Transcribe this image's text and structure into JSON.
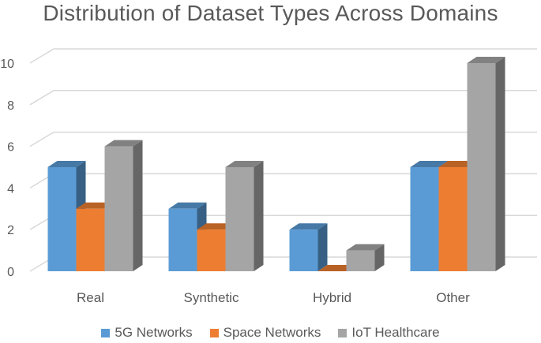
{
  "chart_data": {
    "type": "bar",
    "title": "Distribution of Dataset Types Across Domains",
    "xlabel": "",
    "ylabel": "",
    "categories": [
      "Real",
      "Synthetic",
      "Hybrid",
      "Other"
    ],
    "series": [
      {
        "name": "5G Networks",
        "values": [
          5,
          3,
          2,
          5
        ],
        "color": "#5B9BD5"
      },
      {
        "name": "Space Networks",
        "values": [
          3,
          2,
          0,
          5
        ],
        "color": "#ED7D31"
      },
      {
        "name": "IoT Healthcare",
        "values": [
          6,
          5,
          1,
          10
        ],
        "color": "#A5A5A5"
      }
    ],
    "ylim": [
      0,
      10
    ],
    "yticks": [
      0,
      2,
      4,
      6,
      8,
      10
    ],
    "grid": true,
    "legend_position": "bottom",
    "style": "3d-clustered-column"
  }
}
